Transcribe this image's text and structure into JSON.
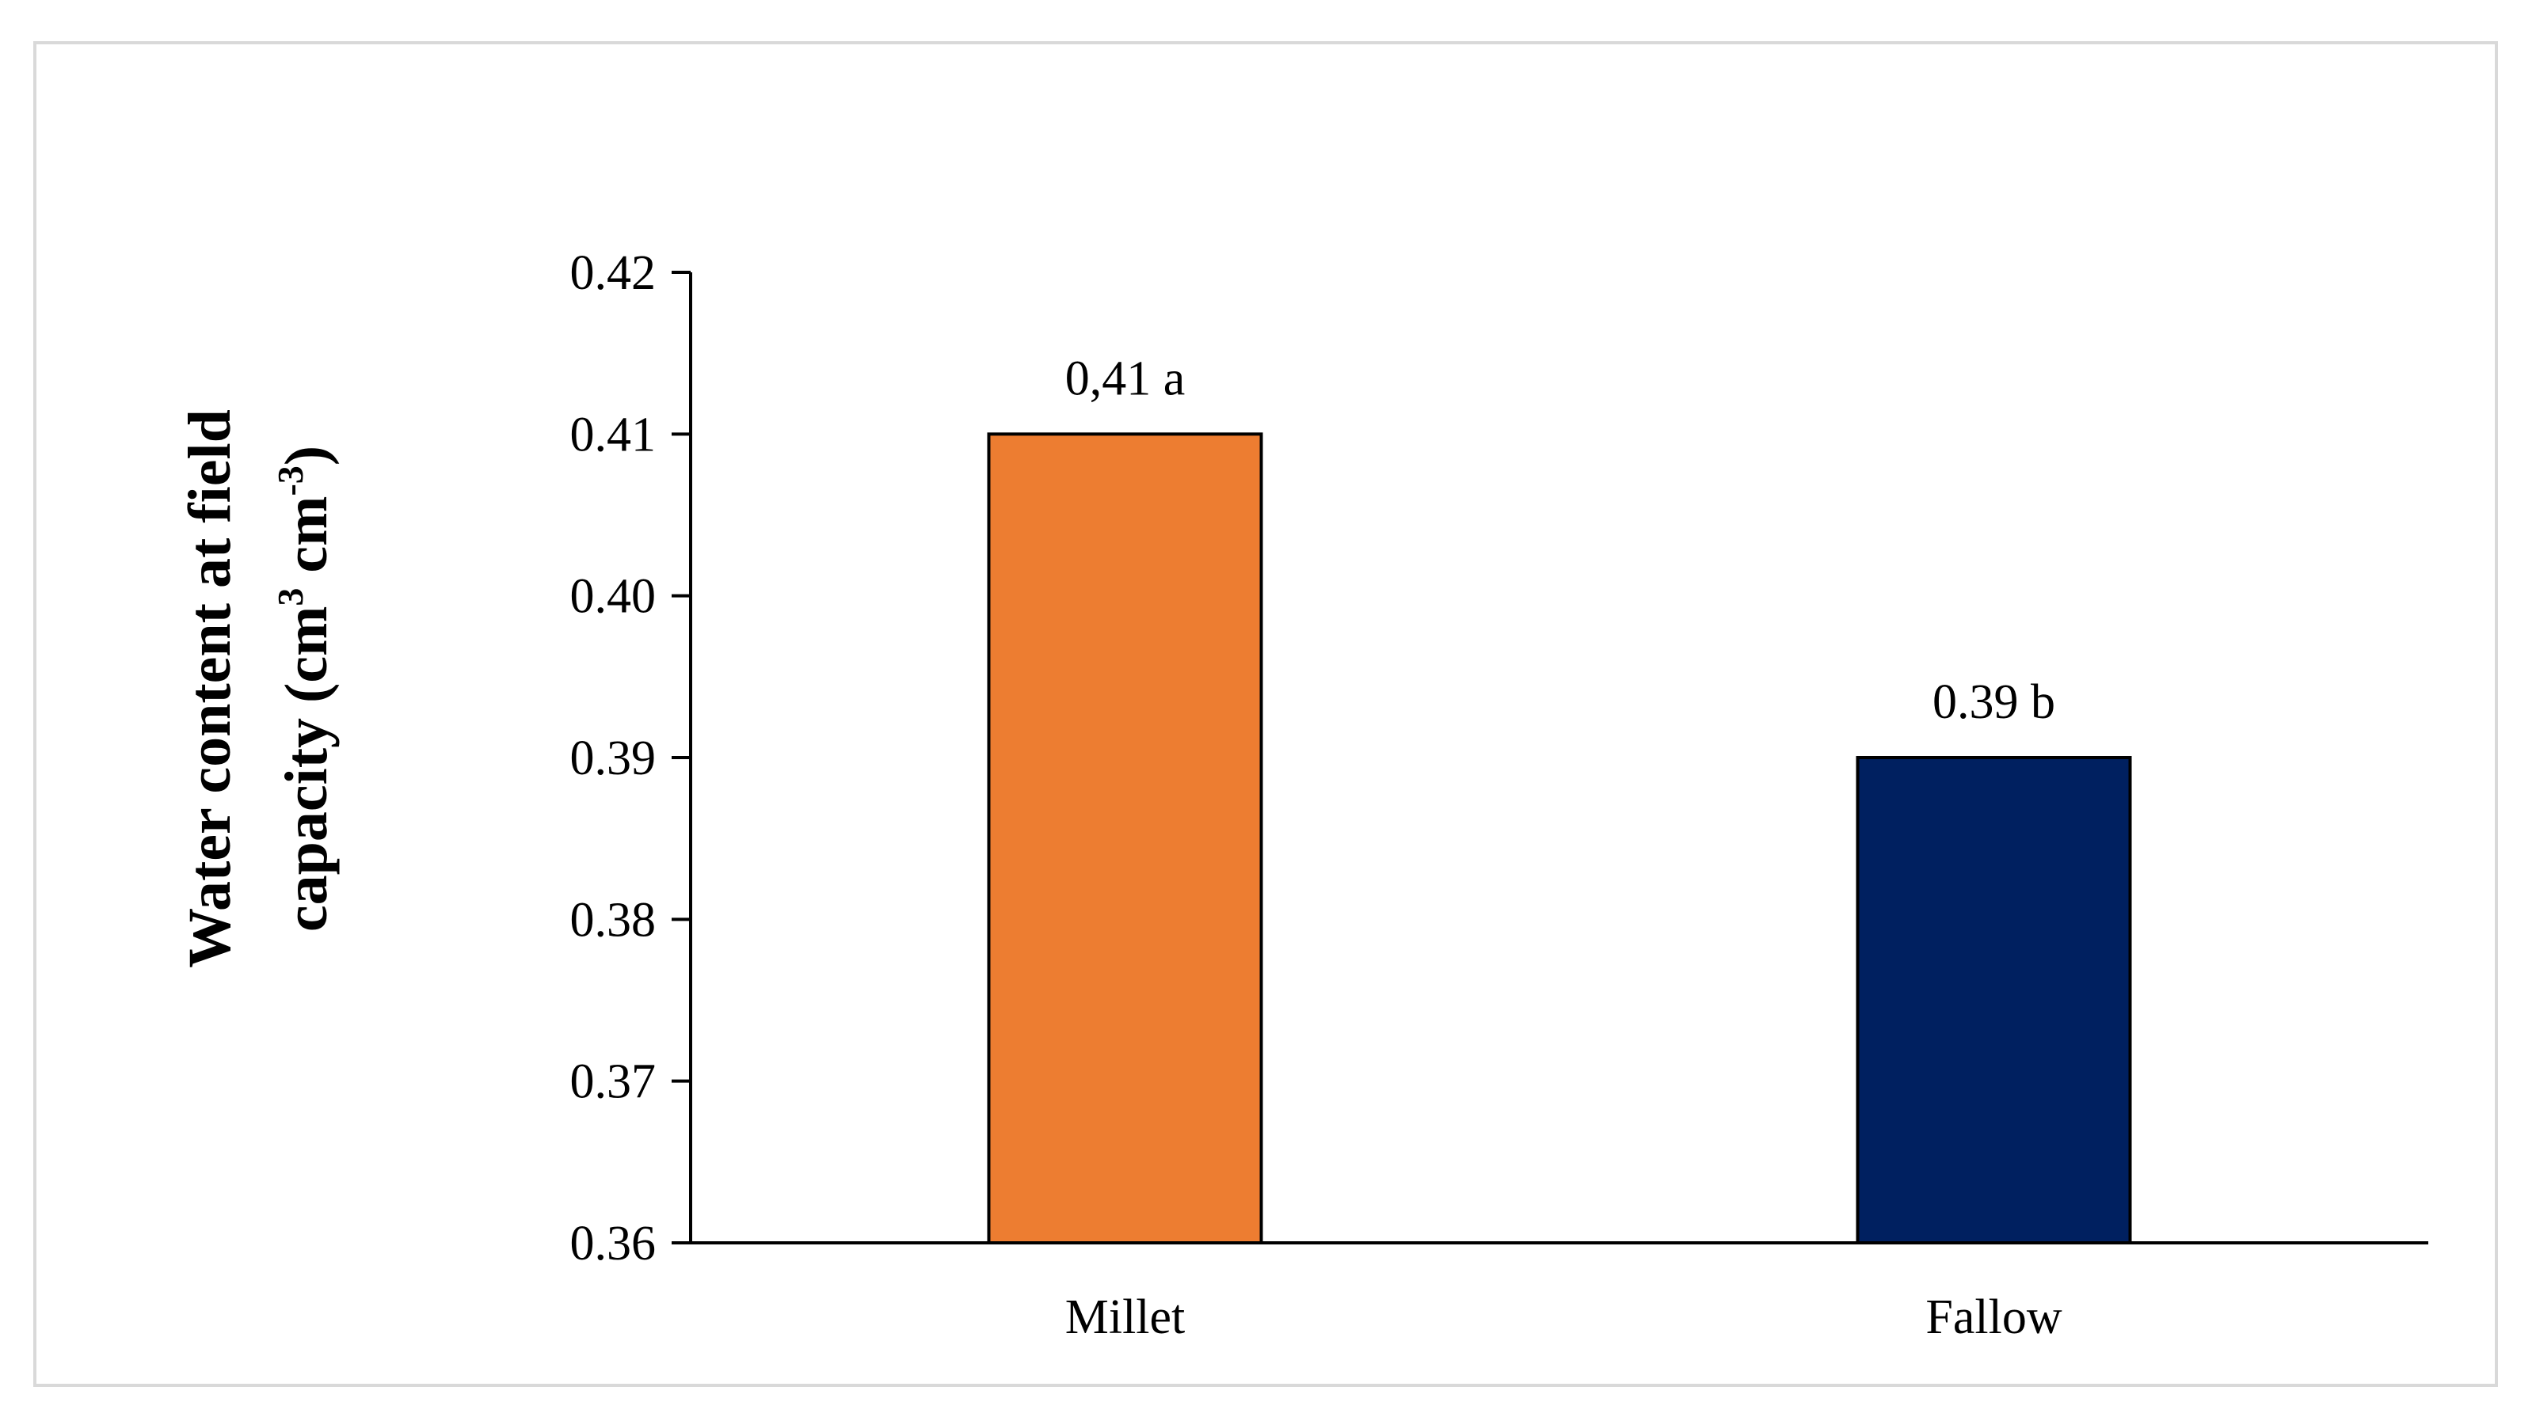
{
  "chart_data": {
    "type": "bar",
    "categories": [
      "Millet",
      "Fallow"
    ],
    "values": [
      0.41,
      0.39
    ],
    "data_labels": [
      "0,41 a",
      "0.39 b"
    ],
    "bar_colors": [
      "#ED7D31",
      "#002060"
    ],
    "title": "",
    "xlabel": "",
    "ylabel": {
      "line1": "Water content at field",
      "line2_prefix": "capacity (cm",
      "sup1": "3",
      "line2_middle": " cm",
      "sup2": "-3",
      "line2_suffix": ")"
    },
    "ylim": [
      0.36,
      0.42
    ],
    "yticks": [
      0.36,
      0.37,
      0.38,
      0.39,
      0.4,
      0.41,
      0.42
    ],
    "ytick_labels": [
      "0.36",
      "0.37",
      "0.38",
      "0.39",
      "0.40",
      "0.41",
      "0.42"
    ],
    "grid": false,
    "legend": "none"
  }
}
